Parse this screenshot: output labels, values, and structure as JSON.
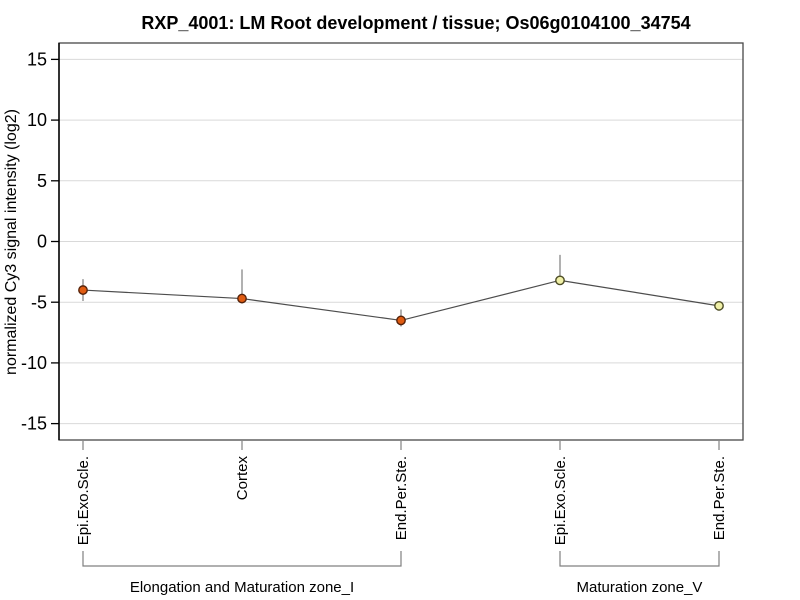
{
  "title": "RXP_4001: LM Root development / tissue; Os06g0104100_34754",
  "chart_data": {
    "type": "line",
    "title": "RXP_4001: LM Root development / tissue; Os06g0104100_34754",
    "xlabel": "",
    "ylabel": "normalized Cy3 signal intensity (log2)",
    "ylim": [
      -16.35,
      16.35
    ],
    "yticks": [
      15,
      10,
      5,
      0,
      -5,
      -10,
      -15
    ],
    "grid": true,
    "legend": "none",
    "categories": [
      "Epi.Exo.Scle.",
      "Cortex",
      "End.Per.Ste.",
      "Epi.Exo.Scle.",
      "End.Per.Ste."
    ],
    "groups": [
      {
        "label": "Elongation and Maturation zone_I",
        "from": 0,
        "to": 2
      },
      {
        "label": "Maturation zone_V",
        "from": 3,
        "to": 4
      }
    ],
    "series": [
      {
        "name": "normalized Cy3 signal intensity (log2)",
        "values": [
          -4.0,
          -4.7,
          -6.5,
          -3.2,
          -5.3
        ],
        "error_high": [
          -3.1,
          -2.3,
          -5.6,
          -1.1,
          -5.0
        ],
        "error_low": [
          -4.9,
          -5.1,
          -7.0,
          -3.5,
          -5.7
        ],
        "point_fill": [
          "#e05c12",
          "#e05c12",
          "#e05c12",
          "#f0f0a8",
          "#f0f0a8"
        ],
        "point_stroke": [
          "#55220a",
          "#55220a",
          "#55220a",
          "#4d4d26",
          "#4d4d26"
        ]
      }
    ]
  },
  "colors": {
    "background": "#ffffff",
    "plot_border": "#474747",
    "axis_line": "#000000",
    "gridline": "#d9d9d9",
    "series_line": "#4d4d4d",
    "error_bar": "#878787",
    "x_tick": "#8c8c8c",
    "bracket": "#808080",
    "text": "#000000"
  }
}
